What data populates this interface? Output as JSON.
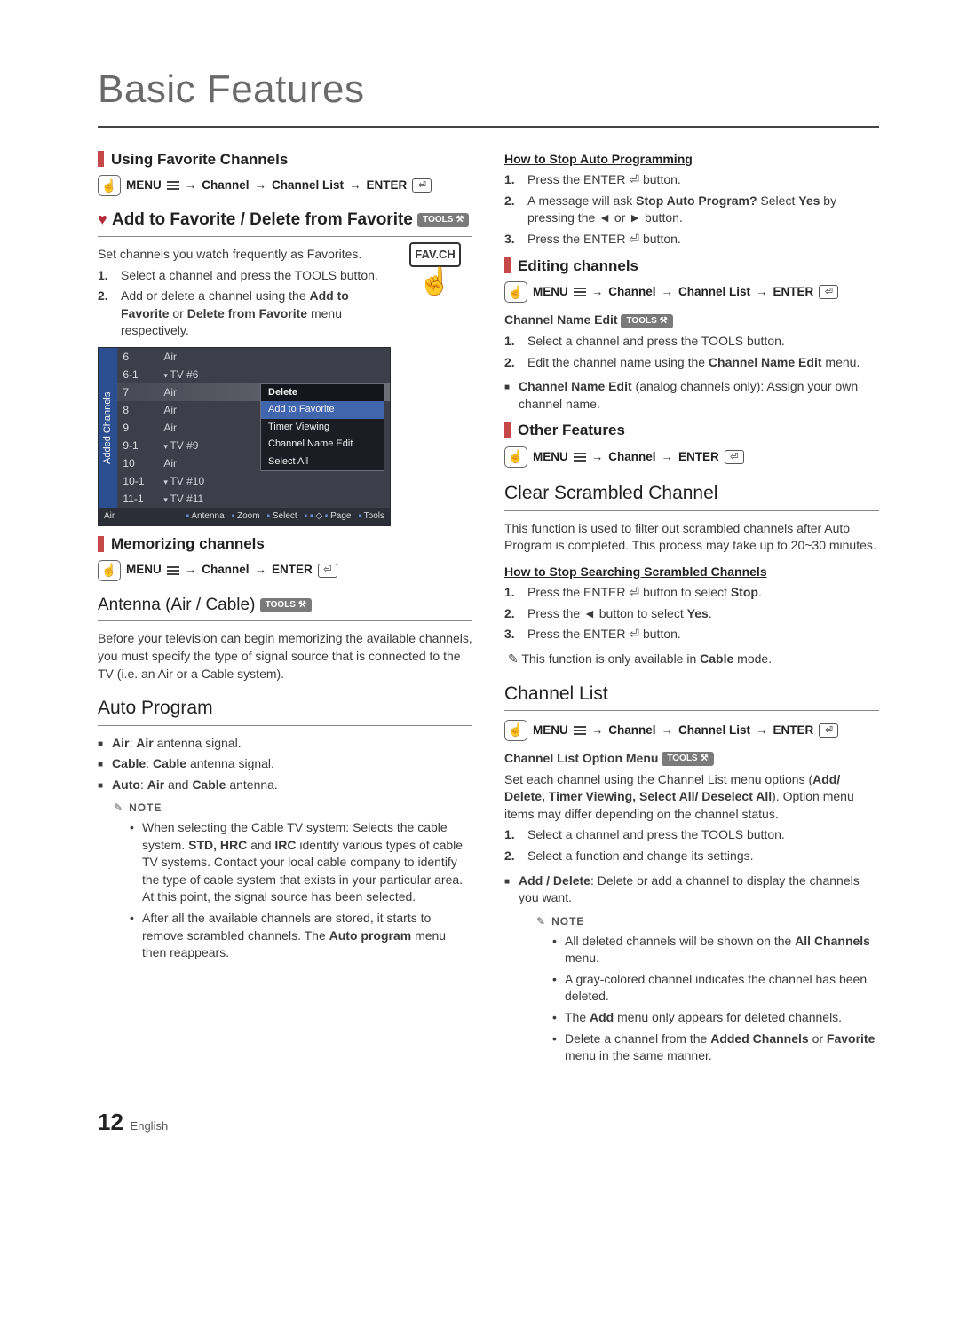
{
  "page": {
    "title": "Basic Features",
    "number": "12",
    "language": "English"
  },
  "left": {
    "sec_favorite": {
      "heading": "Using Favorite Channels",
      "menu_path": [
        "MENU",
        "Channel",
        "Channel List",
        "ENTER"
      ],
      "subheading_prefix": "Add to Favorite / Delete from Favorite",
      "tools_label": "TOOLS",
      "intro": "Set channels you watch frequently as Favorites.",
      "favch_label": "FAV.CH",
      "steps": [
        "Select a channel and press the TOOLS button.",
        "Add or delete a channel using the <b>Add to Favorite</b> or <b>Delete from Favorite</b> menu respectively."
      ],
      "channel_table": {
        "tab_label": "Added Channels",
        "rows": [
          {
            "num": "6",
            "name": "Air",
            "tv": false
          },
          {
            "num": "6-1",
            "name": "TV #6",
            "tv": true
          },
          {
            "num": "7",
            "name": "Air",
            "tv": false,
            "highlight": true
          },
          {
            "num": "8",
            "name": "Air",
            "tv": false
          },
          {
            "num": "9",
            "name": "Air",
            "tv": false
          },
          {
            "num": "9-1",
            "name": "TV #9",
            "tv": true
          },
          {
            "num": "10",
            "name": "Air",
            "tv": false
          },
          {
            "num": "10-1",
            "name": "TV #10",
            "tv": true
          },
          {
            "num": "11-1",
            "name": "TV #11",
            "tv": true
          }
        ],
        "context_menu": {
          "header": "Delete",
          "items": [
            "Add to Favorite",
            "Timer Viewing",
            "Channel Name Edit",
            "Select All"
          ]
        },
        "footer_left": "Air",
        "footer_items": [
          "Antenna",
          "Zoom",
          "Select",
          "Page",
          "Tools"
        ],
        "footer_page_glyph": "◇"
      }
    },
    "sec_memorize": {
      "heading": "Memorizing channels",
      "menu_path": [
        "MENU",
        "Channel",
        "ENTER"
      ]
    },
    "sec_antenna": {
      "heading": "Antenna (Air / Cable)",
      "tools_label": "TOOLS",
      "body": "Before your television can begin memorizing the available channels, you must specify the type of signal source that is connected to the TV (i.e. an Air or a Cable system)."
    },
    "sec_autoprogram": {
      "heading": "Auto Program",
      "bullets": [
        "<b>Air</b>: <b>Air</b> antenna signal.",
        "<b>Cable</b>: <b>Cable</b> antenna signal.",
        "<b>Auto</b>: <b>Air</b> and <b>Cable</b> antenna."
      ],
      "note_label": "NOTE",
      "notes": [
        "When selecting the Cable TV system: Selects the cable system. <b>STD, HRC</b> and <b>IRC</b> identify various types of cable TV systems. Contact your local cable company to identify the type of cable system that exists in your particular area. At this point, the signal source has been selected.",
        "After all the available channels are stored, it starts to remove scrambled channels. The <b>Auto program</b> menu then reappears."
      ]
    }
  },
  "right": {
    "sec_stop_auto": {
      "heading": "How to Stop Auto Programming",
      "steps": [
        "Press the ENTER ⏎ button.",
        "A message will ask <b>Stop Auto Program?</b> Select <b>Yes</b> by pressing the ◄ or ► button.",
        "Press the ENTER ⏎ button."
      ]
    },
    "sec_editing": {
      "heading": "Editing channels",
      "menu_path": [
        "MENU",
        "Channel",
        "Channel List",
        "ENTER"
      ],
      "name_edit_heading": "Channel Name Edit",
      "tools_label": "TOOLS",
      "steps": [
        "Select a channel and press the TOOLS button.",
        "Edit the channel name using the <b>Channel Name Edit</b> menu."
      ],
      "bullet": "<b>Channel Name Edit</b> (analog channels only): Assign your own channel name."
    },
    "sec_other": {
      "heading": "Other Features",
      "menu_path": [
        "MENU",
        "Channel",
        "ENTER"
      ]
    },
    "sec_clear": {
      "heading": "Clear Scrambled Channel",
      "body": "This function is used to filter out scrambled channels after Auto Program is completed. This process may take up to 20~30 minutes.",
      "sub_heading": "How to Stop Searching Scrambled Channels",
      "steps": [
        "Press the ENTER ⏎ button to select <b>Stop</b>.",
        "Press the ◄ button to select <b>Yes</b>.",
        "Press the ENTER ⏎ button."
      ],
      "note_line": "This function is only available in <b>Cable</b> mode."
    },
    "sec_chlist": {
      "heading": "Channel List",
      "menu_path": [
        "MENU",
        "Channel",
        "Channel List",
        "ENTER"
      ],
      "opt_heading": "Channel List Option Menu",
      "tools_label": "TOOLS",
      "intro": "Set each channel using the Channel List menu options (<b>Add/ Delete, Timer Viewing, Select All/ Deselect All</b>). Option menu items may differ depending on the channel status.",
      "steps": [
        "Select a channel and press the TOOLS button.",
        "Select a function and change its settings."
      ],
      "bullet": "<b>Add / Delete</b>: Delete or add a channel to display the channels you want.",
      "note_label": "NOTE",
      "notes": [
        "All deleted channels will be shown on the <b>All Channels</b> menu.",
        "A gray-colored channel indicates the channel has been deleted.",
        "The <b>Add</b> menu only appears for deleted channels.",
        "Delete a channel from the <b>Added Channels</b> or <b>Favorite</b> menu in the same manner."
      ]
    }
  }
}
